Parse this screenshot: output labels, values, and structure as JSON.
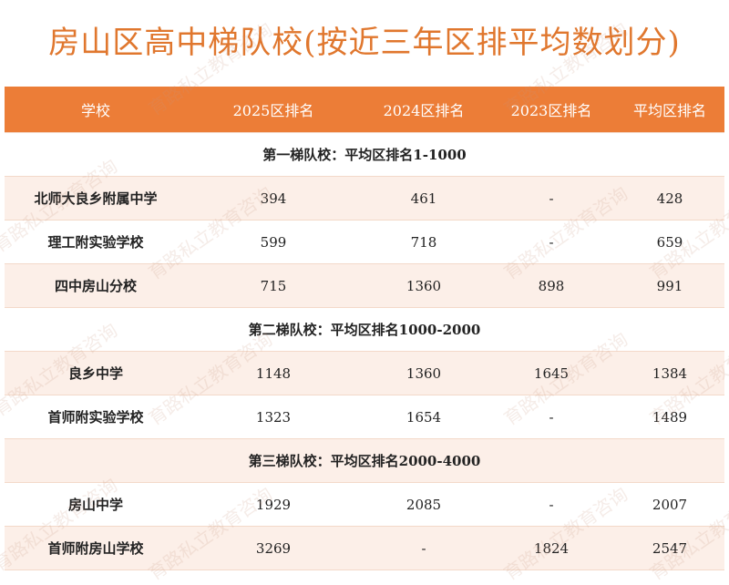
{
  "title": "房山区高中梯队校(按近三年区排平均数划分)",
  "watermark": "育路私立教育咨询",
  "table": {
    "headers": [
      "学校",
      "2025区排名",
      "2024区排名",
      "2023区排名",
      "平均区排名"
    ],
    "rows": [
      {
        "section": "第一梯队校：平均区排名1-1000"
      },
      {
        "cells": [
          "北师大良乡附属中学",
          "394",
          "461",
          "-",
          "428"
        ]
      },
      {
        "cells": [
          "理工附实验学校",
          "599",
          "718",
          "-",
          "659"
        ]
      },
      {
        "cells": [
          "四中房山分校",
          "715",
          "1360",
          "898",
          "991"
        ]
      },
      {
        "section": "第二梯队校：平均区排名1000-2000"
      },
      {
        "cells": [
          "良乡中学",
          "1148",
          "1360",
          "1645",
          "1384"
        ]
      },
      {
        "cells": [
          "首师附实验学校",
          "1323",
          "1654",
          "-",
          "1489"
        ]
      },
      {
        "section": "第三梯队校：平均区排名2000-4000"
      },
      {
        "cells": [
          "房山中学",
          "1929",
          "2085",
          "-",
          "2007"
        ]
      },
      {
        "cells": [
          "首师附房山学校",
          "3269",
          "-",
          "1824",
          "2547"
        ]
      }
    ]
  }
}
